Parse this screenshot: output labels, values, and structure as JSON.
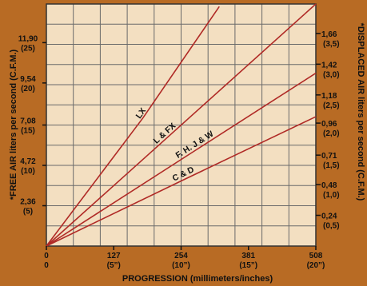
{
  "colors": {
    "background": "#b86b24",
    "plot_fill": "#f3dfc1",
    "grid": "#6a6a6a",
    "line": "#b02a26",
    "text": "#111111"
  },
  "chart_data": {
    "type": "line",
    "title": "",
    "xlabel": "PROGRESSION (millimeters/inches)",
    "ylabel_left": "*FREE AIR liters per second (C.F.M.)",
    "ylabel_right": "*DISPLACED AIR liters per second (C.F.M.)",
    "xlim": [
      0,
      508
    ],
    "ylim_left": [
      0,
      14.16
    ],
    "ylim_right": [
      0,
      1.89
    ],
    "grid": true,
    "x_ticks": [
      {
        "value": 0,
        "label": "0",
        "sublabel": "0"
      },
      {
        "value": 127,
        "label": "127",
        "sublabel": "(5”)"
      },
      {
        "value": 254,
        "label": "254",
        "sublabel": "(10”)"
      },
      {
        "value": 381,
        "label": "381",
        "sublabel": "(15”)"
      },
      {
        "value": 508,
        "label": "508",
        "sublabel": "(20”)"
      }
    ],
    "y_left_ticks": [
      {
        "value": 2.36,
        "label": "2,36",
        "sublabel": "(5)"
      },
      {
        "value": 4.72,
        "label": "4,72",
        "sublabel": "(10)"
      },
      {
        "value": 7.08,
        "label": "7,08",
        "sublabel": "(15)"
      },
      {
        "value": 9.54,
        "label": "9,54",
        "sublabel": "(20)"
      },
      {
        "value": 11.9,
        "label": "11,90",
        "sublabel": "(25)"
      }
    ],
    "y_right_ticks": [
      {
        "value": 0.24,
        "label": "0,24",
        "sublabel": "(0,5)"
      },
      {
        "value": 0.48,
        "label": "0,48",
        "sublabel": "(1,0)"
      },
      {
        "value": 0.71,
        "label": "0,71",
        "sublabel": "(1,5)"
      },
      {
        "value": 0.96,
        "label": "0,96",
        "sublabel": "(2,0)"
      },
      {
        "value": 1.18,
        "label": "1,18",
        "sublabel": "(2,5)"
      },
      {
        "value": 1.42,
        "label": "1,42",
        "sublabel": "(3,0)"
      },
      {
        "value": 1.66,
        "label": "1,66",
        "sublabel": "(3,5)"
      }
    ],
    "series": [
      {
        "name": "LX",
        "x": [
          0,
          182,
          326
        ],
        "y": [
          0,
          1.0,
          1.87
        ]
      },
      {
        "name": "L & FX",
        "x": [
          0,
          226,
          508
        ],
        "y": [
          0,
          0.84,
          1.89
        ]
      },
      {
        "name": "F. H. J & W",
        "x": [
          0,
          282,
          508
        ],
        "y": [
          0,
          0.75,
          1.35
        ]
      },
      {
        "name": "C & D",
        "x": [
          0,
          260,
          508
        ],
        "y": [
          0,
          0.52,
          1.01
        ]
      }
    ]
  }
}
